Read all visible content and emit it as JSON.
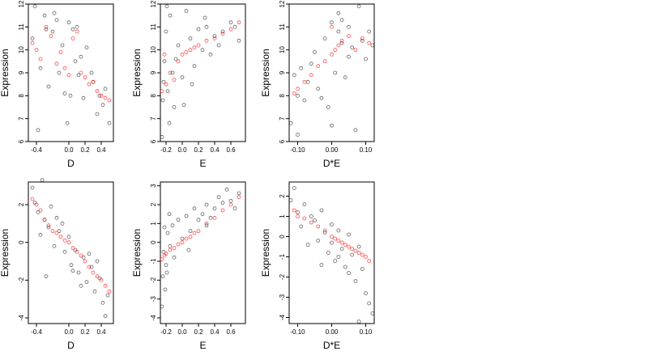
{
  "colors": {
    "background": "#ffffff",
    "observed_points": "#000000",
    "fitted_points": "#ff0000",
    "axis": "#000000"
  },
  "chart_data": [
    {
      "type": "scatter",
      "xlabel": "D",
      "ylabel": "Expression",
      "xlim": [
        -0.5,
        0.55
      ],
      "ylim": [
        6,
        12
      ],
      "xticks": [
        -0.4,
        0,
        0.2,
        0.4
      ],
      "xtick_labels": [
        "-0.4",
        "0.0",
        "0.2",
        "0.4"
      ],
      "yticks": [
        6,
        7,
        8,
        9,
        10,
        11,
        12
      ],
      "ytick_labels": [
        "6",
        "7",
        "8",
        "9",
        "10",
        "11",
        "12"
      ],
      "pattern": "negative trend with scatter",
      "series": [
        {
          "kind": "observed",
          "color": "#000000",
          "x": [
            -0.45,
            -0.42,
            -0.35,
            -0.3,
            -0.25,
            -0.2,
            -0.18,
            -0.12,
            -0.08,
            -0.05,
            0.0,
            0.05,
            0.08,
            0.12,
            0.18,
            0.22,
            0.3,
            0.35,
            0.42,
            0.5,
            -0.38,
            -0.15,
            0.02,
            0.15,
            0.28,
            0.45,
            -0.28,
            0.1,
            -0.02,
            0.38
          ],
          "y": [
            10.5,
            11.9,
            9.2,
            11.5,
            8.4,
            10.8,
            11.6,
            9.0,
            10.2,
            8.1,
            11.2,
            10.9,
            9.5,
            8.9,
            7.9,
            10.1,
            8.6,
            7.2,
            7.6,
            6.8,
            6.5,
            11.3,
            8.0,
            9.7,
            9.0,
            8.3,
            10.9,
            11.0,
            6.8,
            8.0
          ]
        },
        {
          "kind": "fitted",
          "color": "#ff0000",
          "x": [
            -0.45,
            -0.4,
            -0.35,
            -0.28,
            -0.22,
            -0.15,
            -0.1,
            -0.05,
            0.0,
            0.05,
            0.1,
            0.15,
            0.2,
            0.25,
            0.3,
            0.35,
            0.4,
            0.45,
            0.5
          ],
          "y": [
            10.3,
            10.0,
            9.6,
            11.0,
            10.6,
            9.4,
            9.9,
            9.2,
            8.9,
            10.5,
            10.8,
            9.0,
            8.8,
            8.5,
            8.6,
            8.2,
            8.0,
            7.9,
            7.8
          ]
        }
      ]
    },
    {
      "type": "scatter",
      "xlabel": "E",
      "ylabel": "Expression",
      "xlim": [
        -0.27,
        0.78
      ],
      "ylim": [
        6,
        12
      ],
      "xticks": [
        -0.2,
        0,
        0.2,
        0.4,
        0.6
      ],
      "xtick_labels": [
        "-0.2",
        "0.0",
        "0.2",
        "0.4",
        "0.6"
      ],
      "yticks": [
        6,
        7,
        8,
        9,
        10,
        11,
        12
      ],
      "ytick_labels": [
        "6",
        "7",
        "8",
        "9",
        "10",
        "11",
        "12"
      ],
      "pattern": "positive trend with scatter",
      "series": [
        {
          "kind": "observed",
          "color": "#000000",
          "x": [
            -0.25,
            -0.24,
            -0.22,
            -0.2,
            -0.18,
            -0.15,
            -0.12,
            -0.1,
            -0.05,
            0.0,
            0.05,
            0.1,
            0.15,
            0.2,
            0.25,
            0.3,
            0.35,
            0.4,
            0.5,
            0.6,
            0.7,
            -0.23,
            -0.19,
            -0.08,
            0.12,
            0.45,
            0.65,
            0.02,
            -0.16,
            0.28
          ],
          "y": [
            6.2,
            7.8,
            9.5,
            10.8,
            8.2,
            11.5,
            9.0,
            7.5,
            10.2,
            8.8,
            11.7,
            10.5,
            9.3,
            10.9,
            10.0,
            11.0,
            9.8,
            10.6,
            10.8,
            11.2,
            10.4,
            8.6,
            11.9,
            9.6,
            8.5,
            10.2,
            11.0,
            7.6,
            6.8,
            11.4
          ]
        },
        {
          "kind": "fitted",
          "color": "#ff0000",
          "x": [
            -0.25,
            -0.22,
            -0.2,
            -0.15,
            -0.1,
            -0.05,
            0.0,
            0.05,
            0.1,
            0.15,
            0.2,
            0.3,
            0.4,
            0.5,
            0.6,
            0.7
          ],
          "y": [
            8.2,
            9.8,
            8.5,
            9.0,
            8.7,
            9.5,
            9.8,
            9.9,
            10.0,
            10.1,
            10.2,
            10.4,
            10.5,
            10.7,
            10.9,
            11.2
          ]
        }
      ]
    },
    {
      "type": "scatter",
      "xlabel": "D*E",
      "ylabel": "Expression",
      "xlim": [
        -0.125,
        0.125
      ],
      "ylim": [
        6,
        12
      ],
      "xticks": [
        -0.1,
        0,
        0.1
      ],
      "xtick_labels": [
        "-0.10",
        "0.00",
        "0.10"
      ],
      "yticks": [
        6,
        7,
        8,
        9,
        10,
        11,
        12
      ],
      "ytick_labels": [
        "6",
        "7",
        "8",
        "9",
        "10",
        "11",
        "12"
      ],
      "pattern": "positive trend concentrated near zero",
      "series": [
        {
          "kind": "observed",
          "color": "#000000",
          "x": [
            -0.12,
            -0.11,
            -0.1,
            -0.09,
            -0.08,
            -0.07,
            -0.05,
            -0.04,
            -0.02,
            -0.01,
            0.0,
            0.01,
            0.02,
            0.03,
            0.04,
            0.05,
            0.06,
            0.08,
            0.1,
            0.11,
            -0.06,
            -0.03,
            0.0,
            0.02,
            0.07,
            0.09,
            -0.1,
            0.03,
            0.05,
            0.12
          ],
          "y": [
            6.8,
            8.9,
            6.3,
            9.2,
            7.8,
            8.6,
            9.9,
            8.3,
            10.5,
            7.5,
            11.2,
            9.0,
            11.6,
            10.3,
            8.8,
            11.0,
            10.1,
            11.9,
            9.6,
            10.8,
            9.4,
            7.9,
            6.7,
            10.8,
            6.5,
            10.4,
            8.0,
            11.3,
            9.7,
            10.2
          ]
        },
        {
          "kind": "fitted",
          "color": "#ff0000",
          "x": [
            -0.11,
            -0.1,
            -0.08,
            -0.06,
            -0.04,
            -0.02,
            0.0,
            0.0,
            0.01,
            0.02,
            0.03,
            0.05,
            0.07,
            0.09,
            0.11
          ],
          "y": [
            8.1,
            8.3,
            8.6,
            8.9,
            9.3,
            9.5,
            9.8,
            11.0,
            10.0,
            10.2,
            10.4,
            10.6,
            10.0,
            10.5,
            10.3
          ]
        }
      ]
    },
    {
      "type": "scatter",
      "xlabel": "D",
      "ylabel": "Expression",
      "xlim": [
        -0.5,
        0.55
      ],
      "ylim": [
        -4.3,
        3.2
      ],
      "xticks": [
        -0.4,
        0,
        0.2,
        0.4
      ],
      "xtick_labels": [
        "-0.4",
        "0.0",
        "0.2",
        "0.4"
      ],
      "yticks": [
        -4,
        -2,
        0,
        2
      ],
      "ytick_labels": [
        "-4",
        "-2",
        "0",
        "2"
      ],
      "pattern": "strong negative linear trend",
      "series": [
        {
          "kind": "observed",
          "color": "#000000",
          "x": [
            -0.45,
            -0.42,
            -0.38,
            -0.33,
            -0.3,
            -0.25,
            -0.22,
            -0.18,
            -0.12,
            -0.08,
            -0.05,
            0.0,
            0.03,
            0.08,
            0.12,
            0.18,
            0.22,
            0.28,
            0.32,
            0.38,
            0.42,
            0.48,
            -0.35,
            -0.15,
            0.05,
            0.25,
            0.45,
            -0.28,
            0.15,
            0.35
          ],
          "y": [
            2.9,
            2.1,
            1.6,
            3.3,
            1.2,
            0.8,
            1.9,
            -0.2,
            0.6,
            1.0,
            -0.5,
            0.3,
            -1.2,
            -0.4,
            -1.6,
            -0.8,
            -2.1,
            -1.3,
            -2.6,
            -1.9,
            -3.2,
            -2.8,
            0.4,
            1.3,
            -1.5,
            -0.6,
            -3.9,
            -1.8,
            -2.3,
            -1.0
          ]
        },
        {
          "kind": "fitted",
          "color": "#ff0000",
          "x": [
            -0.45,
            -0.4,
            -0.35,
            -0.3,
            -0.25,
            -0.2,
            -0.15,
            -0.1,
            -0.05,
            0.0,
            0.05,
            0.1,
            0.15,
            0.2,
            0.25,
            0.3,
            0.35,
            0.4,
            0.45,
            0.5
          ],
          "y": [
            2.3,
            2.0,
            1.7,
            1.2,
            0.9,
            0.6,
            0.5,
            0.3,
            0.1,
            0.0,
            -0.3,
            -0.5,
            -0.7,
            -1.0,
            -1.3,
            -1.6,
            -1.8,
            -2.0,
            -2.3,
            -2.6
          ]
        }
      ]
    },
    {
      "type": "scatter",
      "xlabel": "E",
      "ylabel": "Expression",
      "xlim": [
        -0.27,
        0.78
      ],
      "ylim": [
        -4.3,
        3.2
      ],
      "xticks": [
        -0.2,
        0,
        0.2,
        0.4,
        0.6
      ],
      "xtick_labels": [
        "-0.2",
        "0.0",
        "0.2",
        "0.4",
        "0.6"
      ],
      "yticks": [
        -4,
        -3,
        -2,
        -1,
        0,
        1,
        2,
        3
      ],
      "ytick_labels": [
        "-4",
        "-3",
        "-2",
        "-1",
        "0",
        "1",
        "2",
        "3"
      ],
      "pattern": "strong positive linear trend",
      "series": [
        {
          "kind": "observed",
          "color": "#000000",
          "x": [
            -0.25,
            -0.24,
            -0.23,
            -0.22,
            -0.2,
            -0.18,
            -0.15,
            -0.12,
            -0.1,
            -0.05,
            0.0,
            0.05,
            0.1,
            0.15,
            0.2,
            0.25,
            0.3,
            0.35,
            0.4,
            0.5,
            0.6,
            0.7,
            -0.21,
            -0.16,
            0.08,
            0.45,
            0.65,
            -0.19,
            0.3,
            0.55
          ],
          "y": [
            -3.4,
            -1.8,
            -0.5,
            0.8,
            -1.2,
            0.5,
            -0.2,
            0.9,
            -0.8,
            1.2,
            0.2,
            1.4,
            0.6,
            1.8,
            1.2,
            1.5,
            2.0,
            1.3,
            1.8,
            2.1,
            2.2,
            2.6,
            -2.5,
            1.5,
            -0.4,
            2.4,
            1.8,
            -1.6,
            0.9,
            2.8
          ]
        },
        {
          "kind": "fitted",
          "color": "#ff0000",
          "x": [
            -0.25,
            -0.22,
            -0.2,
            -0.15,
            -0.1,
            -0.05,
            0.0,
            0.05,
            0.1,
            0.15,
            0.2,
            0.3,
            0.4,
            0.5,
            0.6,
            0.7
          ],
          "y": [
            -0.9,
            -0.7,
            -0.6,
            -0.4,
            -0.3,
            -0.1,
            0.0,
            0.2,
            0.3,
            0.5,
            0.6,
            1.0,
            1.3,
            1.7,
            2.0,
            2.4
          ]
        }
      ]
    },
    {
      "type": "scatter",
      "xlabel": "D*E",
      "ylabel": "Expression",
      "xlim": [
        -0.125,
        0.125
      ],
      "ylim": [
        -4.3,
        2.7
      ],
      "xticks": [
        -0.1,
        0,
        0.1
      ],
      "xtick_labels": [
        "-0.10",
        "0.00",
        "0.10"
      ],
      "yticks": [
        -4,
        -3,
        -2,
        -1,
        0,
        1,
        2
      ],
      "ytick_labels": [
        "-4",
        "-3",
        "-2",
        "-1",
        "0",
        "1",
        "2"
      ],
      "pattern": "strong negative linear trend",
      "series": [
        {
          "kind": "observed",
          "color": "#000000",
          "x": [
            -0.12,
            -0.11,
            -0.1,
            -0.09,
            -0.08,
            -0.07,
            -0.05,
            -0.04,
            -0.03,
            -0.02,
            -0.01,
            0.0,
            0.01,
            0.02,
            0.03,
            0.04,
            0.05,
            0.06,
            0.07,
            0.08,
            0.09,
            0.1,
            0.11,
            -0.06,
            0.0,
            0.02,
            0.05,
            0.08,
            0.12,
            -0.03
          ],
          "y": [
            1.8,
            2.4,
            1.2,
            0.5,
            1.6,
            -0.4,
            0.8,
            -0.2,
            1.3,
            0.2,
            -0.8,
            0.6,
            -1.2,
            0.3,
            -0.6,
            -1.5,
            0.1,
            -0.9,
            -2.2,
            -0.5,
            -1.6,
            -2.8,
            -3.3,
            1.0,
            -0.3,
            -1.0,
            -1.8,
            -4.2,
            -3.8,
            -1.4
          ]
        },
        {
          "kind": "fitted",
          "color": "#ff0000",
          "x": [
            -0.11,
            -0.1,
            -0.08,
            -0.06,
            -0.04,
            -0.02,
            0.0,
            0.01,
            0.02,
            0.03,
            0.04,
            0.05,
            0.06,
            0.07,
            0.08,
            0.09,
            0.1,
            0.11
          ],
          "y": [
            1.3,
            1.0,
            0.9,
            0.7,
            0.5,
            0.3,
            0.0,
            -0.1,
            -0.2,
            -0.3,
            -0.4,
            -0.5,
            -0.6,
            -0.7,
            -0.8,
            -0.9,
            -1.0,
            -1.2
          ]
        }
      ]
    }
  ]
}
